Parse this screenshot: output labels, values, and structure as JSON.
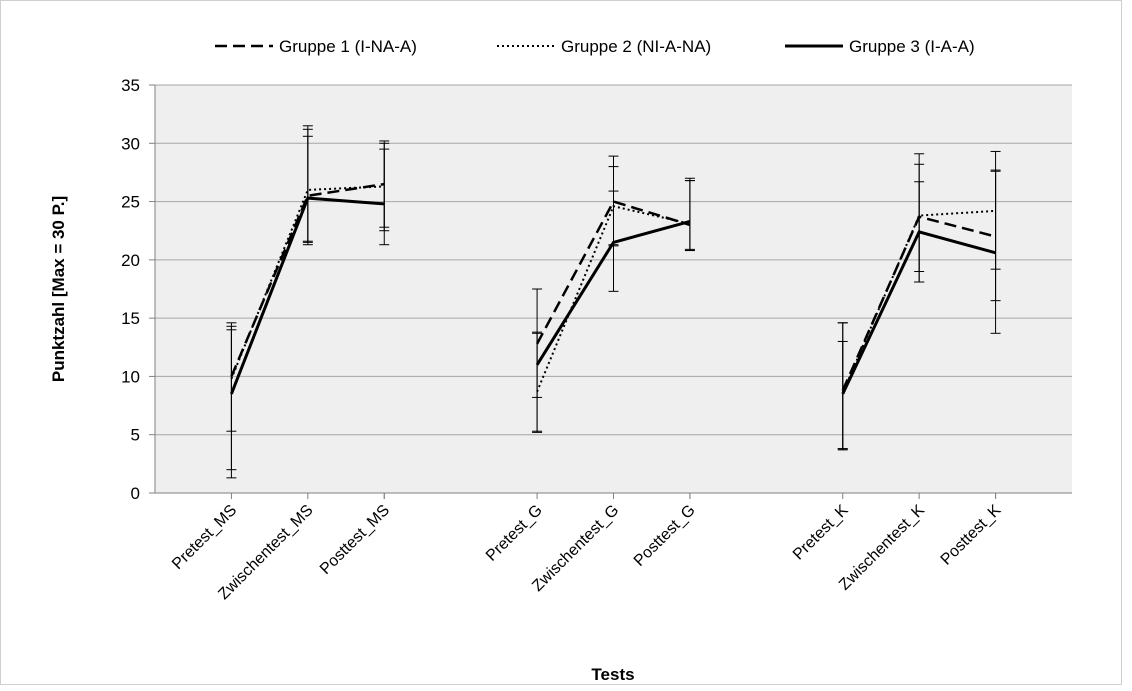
{
  "chart_data": {
    "type": "line",
    "title": "",
    "xlabel": "Tests",
    "ylabel": "Punktzahl [Max = 30 P.]",
    "ylim": [
      0,
      35
    ],
    "yticks": [
      0,
      5,
      10,
      15,
      20,
      25,
      30,
      35
    ],
    "grid": true,
    "legend_position": "top",
    "groups": [
      [
        "Pretest_MS",
        "Zwischentest_MS",
        "Posttest_MS"
      ],
      [
        "Pretest_G",
        "Zwischentest_G",
        "Posttest_G"
      ],
      [
        "Pretest_K",
        "Zwischentest_K",
        "Posttest_K"
      ]
    ],
    "series": [
      {
        "name": "Gruppe 1 (I-NA-A)",
        "style": "dashed",
        "segments": [
          {
            "values": [
              10.0,
              25.5,
              26.5
            ],
            "errors": [
              [
                1.3,
                14.6
              ],
              [
                21.5,
                31.5
              ],
              [
                22.8,
                30.2
              ]
            ]
          },
          {
            "values": [
              12.8,
              25.0,
              23.0
            ],
            "errors": [
              [
                8.2,
                17.5
              ],
              [
                21.2,
                28.9
              ],
              [
                20.8,
                27.0
              ]
            ]
          },
          {
            "values": [
              8.8,
              23.7,
              22.0
            ],
            "errors": [
              [
                3.8,
                13.0
              ],
              [
                19.0,
                28.2
              ],
              [
                16.5,
                27.7
              ]
            ]
          }
        ]
      },
      {
        "name": "Gruppe 2 (NI-A-NA)",
        "style": "dotted",
        "segments": [
          {
            "values": [
              9.8,
              26.0,
              26.3
            ],
            "errors": [
              [
                5.3,
                14.3
              ],
              [
                21.3,
                30.6
              ],
              [
                22.5,
                30.0
              ]
            ]
          },
          {
            "values": [
              8.7,
              24.6,
              23.1
            ],
            "errors": [
              [
                5.2,
                13.8
              ],
              [
                21.3,
                28.0
              ],
              [
                20.9,
                26.8
              ]
            ]
          },
          {
            "values": [
              8.6,
              23.8,
              24.2
            ],
            "errors": [
              [
                3.7,
                14.6
              ],
              [
                18.1,
                29.1
              ],
              [
                19.2,
                29.3
              ]
            ]
          }
        ]
      },
      {
        "name": "Gruppe 3 (I-A-A)",
        "style": "solid",
        "segments": [
          {
            "values": [
              8.5,
              25.3,
              24.8
            ],
            "errors": [
              [
                2.0,
                14.0
              ],
              [
                21.6,
                31.2
              ],
              [
                21.3,
                29.5
              ]
            ]
          },
          {
            "values": [
              11.0,
              21.5,
              23.3
            ],
            "errors": [
              [
                5.3,
                13.7
              ],
              [
                17.3,
                25.9
              ],
              [
                20.8,
                26.8
              ]
            ]
          },
          {
            "values": [
              8.5,
              22.4,
              20.6
            ],
            "errors": [
              [
                3.8,
                14.6
              ],
              [
                18.1,
                26.7
              ],
              [
                13.7,
                27.6
              ]
            ]
          }
        ]
      }
    ]
  }
}
